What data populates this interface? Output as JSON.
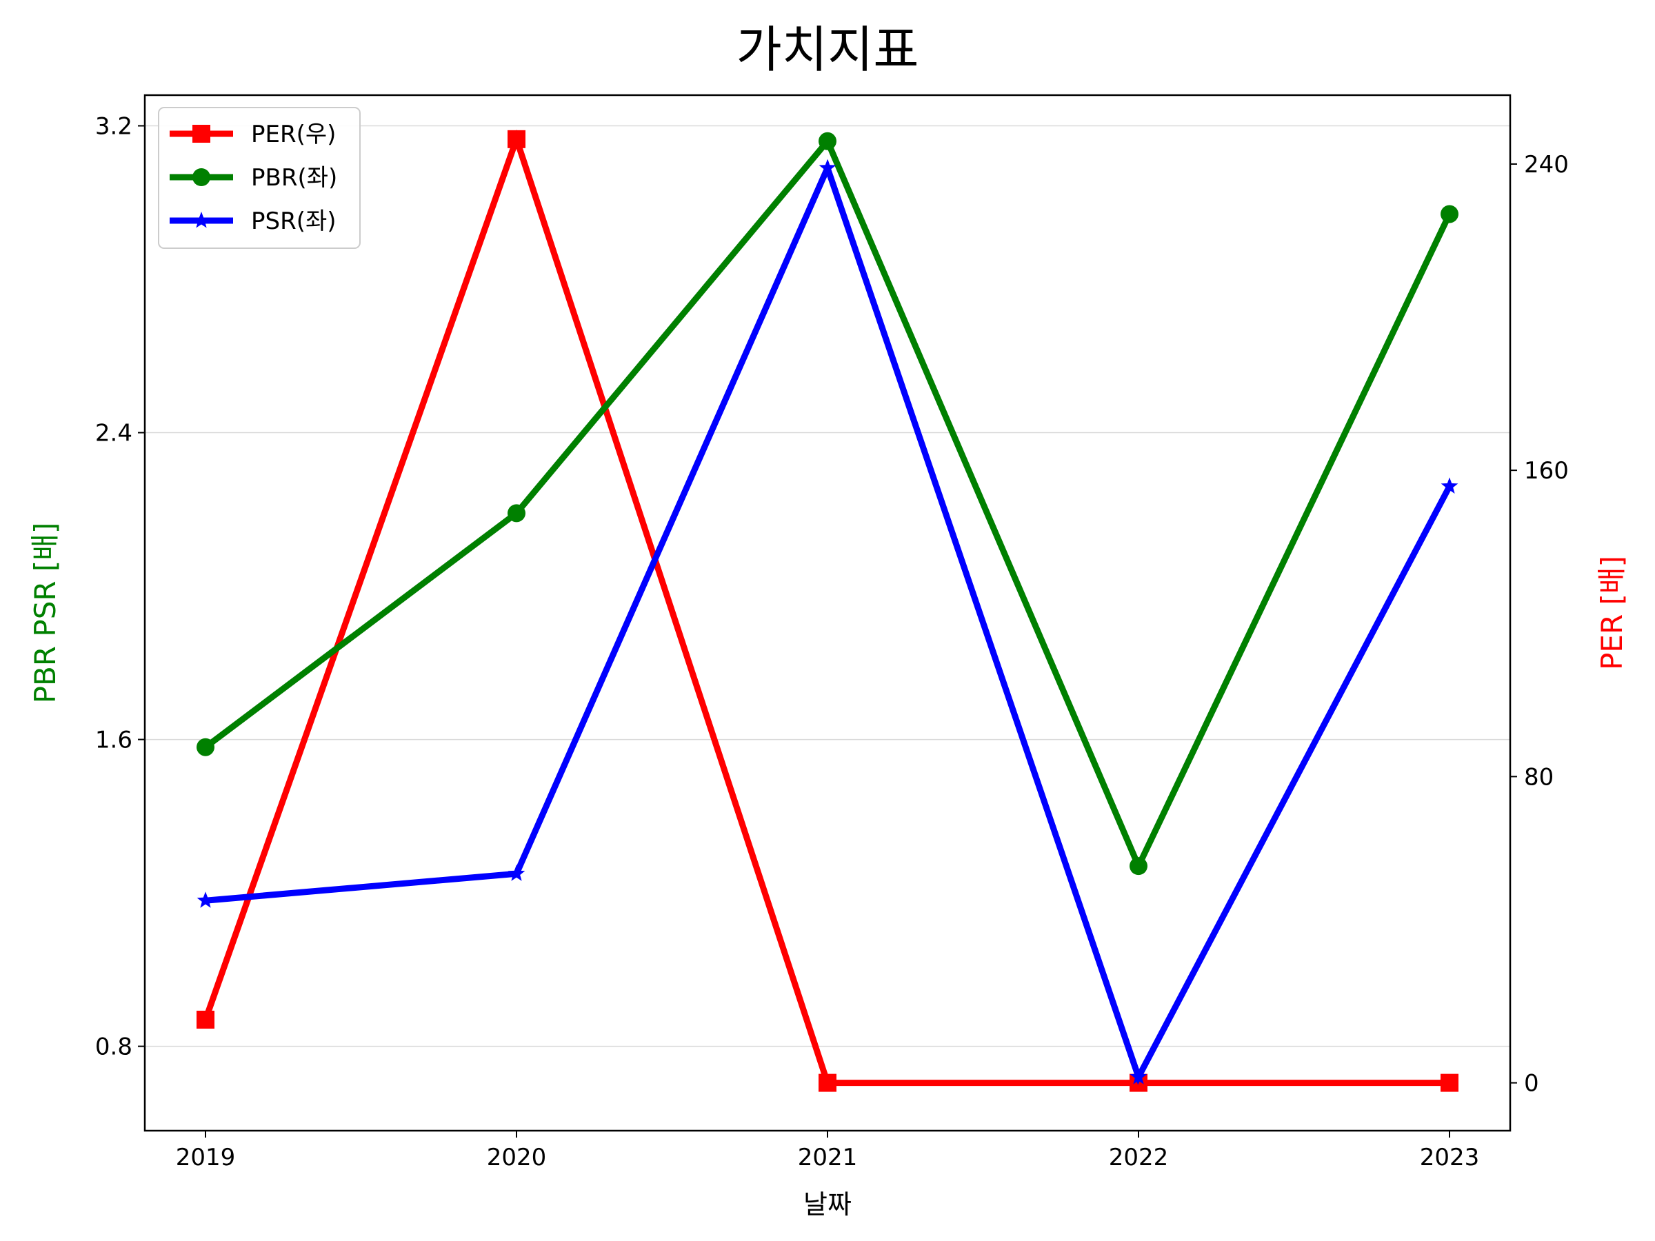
{
  "chart_data": {
    "type": "line",
    "title": "가치지표",
    "xlabel": "날짜",
    "ylabel_left": "PBR PSR [배]",
    "ylabel_right": "PER [배]",
    "categories": [
      "2019",
      "2020",
      "2021",
      "2022",
      "2023"
    ],
    "left_axis": {
      "ylim": [
        0.58,
        3.28
      ],
      "ticks": [
        "0.8",
        "1.6",
        "2.4",
        "3.2"
      ],
      "tick_values": [
        0.8,
        1.6,
        2.4,
        3.2
      ],
      "color": "#008000"
    },
    "right_axis": {
      "ylim": [
        -12.5,
        258
      ],
      "ticks": [
        "0",
        "80",
        "160",
        "240"
      ],
      "tick_values": [
        0,
        80,
        160,
        240
      ],
      "color": "#ff0000"
    },
    "grid": "horizontal",
    "legend_position": "upper-left",
    "series": [
      {
        "name": "PER(우)",
        "axis": "right",
        "color": "#ff0000",
        "marker": "square",
        "values": [
          16.5,
          246.5,
          0,
          0,
          0
        ]
      },
      {
        "name": "PBR(좌)",
        "axis": "left",
        "color": "#008000",
        "marker": "circle",
        "values": [
          1.58,
          2.19,
          3.16,
          1.27,
          2.97
        ]
      },
      {
        "name": "PSR(좌)",
        "axis": "left",
        "color": "#0000ff",
        "marker": "star",
        "values": [
          1.18,
          1.25,
          3.09,
          0.72,
          2.26
        ]
      }
    ]
  }
}
